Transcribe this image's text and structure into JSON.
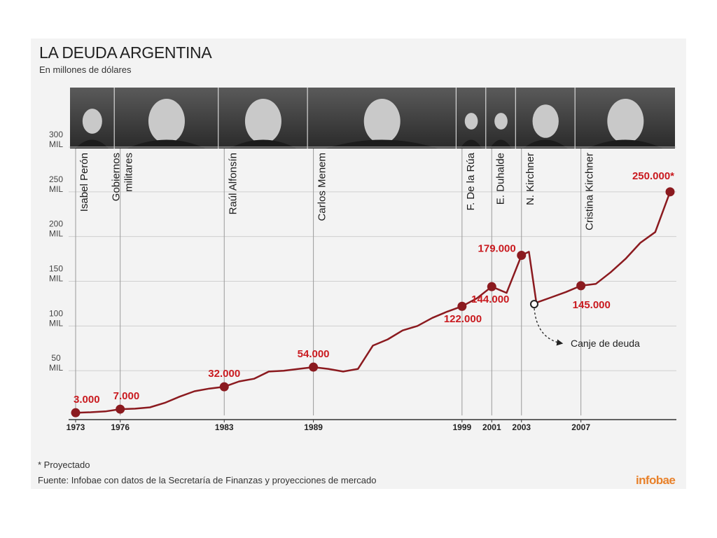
{
  "header": {
    "title": "LA DEUDA ARGENTINA",
    "subtitle": "En millones de dólares"
  },
  "footer": {
    "footnote": "* Proyectado",
    "source": "Fuente: Infobae con datos de la Secretaría de Finanzas y proyecciones de mercado",
    "logo": "infobae"
  },
  "colors": {
    "line": "#8b1a1f",
    "marker": "#8b1a1f",
    "label": "#c91a1f",
    "grid": "#cfcfcf",
    "panel": "#f3f3f3"
  },
  "chart_data": {
    "type": "line",
    "title": "LA DEUDA ARGENTINA",
    "subtitle": "En millones de dólares",
    "xlim": [
      1973,
      2013
    ],
    "ylim": [
      0,
      300000
    ],
    "grid": true,
    "yticks": [
      {
        "value": 50000,
        "label": [
          "50",
          "MIL"
        ]
      },
      {
        "value": 100000,
        "label": [
          "100",
          "MIL"
        ]
      },
      {
        "value": 150000,
        "label": [
          "150",
          "MIL"
        ]
      },
      {
        "value": 200000,
        "label": [
          "200",
          "MIL"
        ]
      },
      {
        "value": 250000,
        "label": [
          "250",
          "MIL"
        ]
      },
      {
        "value": 300000,
        "label": [
          "300",
          "MIL"
        ]
      }
    ],
    "xticks": [
      {
        "year": 1973,
        "label": "1973"
      },
      {
        "year": 1976,
        "label": "1976"
      },
      {
        "year": 1983,
        "label": "1983"
      },
      {
        "year": 1989,
        "label": "1989"
      },
      {
        "year": 1999,
        "label": "1999"
      },
      {
        "year": 2001,
        "label": "2001"
      },
      {
        "year": 2003,
        "label": "2003"
      },
      {
        "year": 2007,
        "label": "2007"
      }
    ],
    "series": [
      {
        "points": [
          [
            1973,
            3000
          ],
          [
            1974,
            3500
          ],
          [
            1975,
            4500
          ],
          [
            1976,
            7000
          ],
          [
            1977,
            7500
          ],
          [
            1978,
            9000
          ],
          [
            1979,
            14000
          ],
          [
            1980,
            21000
          ],
          [
            1981,
            27000
          ],
          [
            1982,
            30000
          ],
          [
            1983,
            32000
          ],
          [
            1984,
            38000
          ],
          [
            1985,
            41000
          ],
          [
            1986,
            49000
          ],
          [
            1987,
            50000
          ],
          [
            1988,
            52000
          ],
          [
            1989,
            54000
          ],
          [
            1990,
            52000
          ],
          [
            1991,
            49000
          ],
          [
            1992,
            52000
          ],
          [
            1993,
            78000
          ],
          [
            1994,
            85000
          ],
          [
            1995,
            95000
          ],
          [
            1996,
            100000
          ],
          [
            1997,
            109000
          ],
          [
            1998,
            116000
          ],
          [
            1999,
            122000
          ],
          [
            2000,
            131000
          ],
          [
            2001,
            144000
          ],
          [
            2002,
            137000
          ],
          [
            2003,
            179000
          ],
          [
            2003.5,
            183000
          ],
          [
            2004,
            126000
          ],
          [
            2005,
            132000
          ],
          [
            2006,
            138000
          ],
          [
            2007,
            145000
          ],
          [
            2008,
            147000
          ],
          [
            2009,
            160000
          ],
          [
            2010,
            175000
          ],
          [
            2011,
            193000
          ],
          [
            2012,
            205000
          ],
          [
            2013,
            250000
          ]
        ]
      }
    ],
    "highlights": [
      {
        "year": 1973,
        "value": 3000,
        "label": "3.000"
      },
      {
        "year": 1976,
        "value": 7000,
        "label": "7.000"
      },
      {
        "year": 1983,
        "value": 32000,
        "label": "32.000"
      },
      {
        "year": 1989,
        "value": 54000,
        "label": "54.000"
      },
      {
        "year": 1999,
        "value": 122000,
        "label": "122.000"
      },
      {
        "year": 2001,
        "value": 144000,
        "label": "144.000"
      },
      {
        "year": 2003,
        "value": 179000,
        "label": "179.000"
      },
      {
        "year": 2007,
        "value": 145000,
        "label": "145.000"
      },
      {
        "year": 2013,
        "value": 250000,
        "label": "250.000*"
      }
    ],
    "annotations": [
      {
        "year": 2004,
        "value": 126000,
        "text": "Canje de deuda"
      }
    ],
    "presidents": [
      {
        "year": 1973,
        "label": [
          "Isabel Perón"
        ],
        "photo": "isabel-peron-photo"
      },
      {
        "year": 1976,
        "label": [
          "Gobiernos",
          "militares"
        ],
        "photo": "military-government-photo"
      },
      {
        "year": 1983,
        "label": [
          "Raúl Alfonsín"
        ],
        "photo": "raul-alfonsin-photo"
      },
      {
        "year": 1989,
        "label": [
          "Carlos Menem"
        ],
        "photo": "carlos-menem-photo"
      },
      {
        "year": 1999,
        "label": [
          "F. De la Rúa"
        ],
        "photo": "de-la-rua-photo"
      },
      {
        "year": 2001,
        "label": [
          "E. Duhalde"
        ],
        "photo": "duhalde-photo"
      },
      {
        "year": 2003,
        "label": [
          "N. Kirchner"
        ],
        "photo": "nestor-kirchner-photo"
      },
      {
        "year": 2007,
        "label": [
          "Cristina Kirchner"
        ],
        "photo": "cristina-kirchner-photo"
      }
    ]
  }
}
